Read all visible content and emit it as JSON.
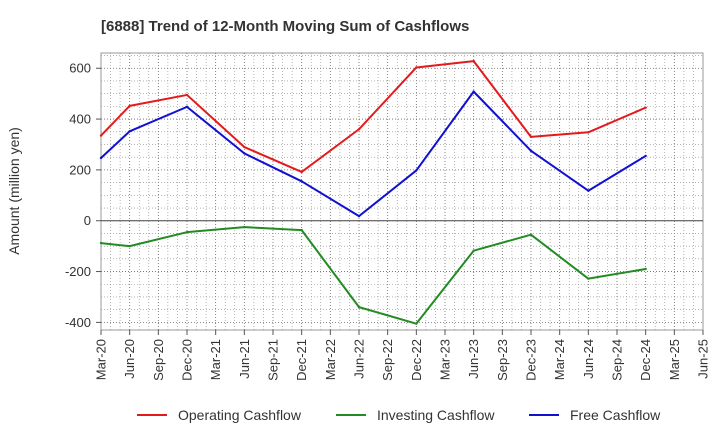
{
  "chart_data": {
    "type": "line",
    "title": "[6888]  Trend of 12-Month Moving Sum of Cashflows",
    "ylabel": "Amount (million yen)",
    "xlabel": "",
    "ylim": [
      -430,
      660
    ],
    "yticks": [
      600,
      400,
      200,
      0,
      -200,
      -400
    ],
    "ytick_labels": [
      "600",
      "400",
      "200",
      "0",
      "-200",
      "-400"
    ],
    "categories": [
      "Mar-20",
      "Jun-20",
      "Sep-20",
      "Dec-20",
      "Mar-21",
      "Jun-21",
      "Sep-21",
      "Dec-21",
      "Mar-22",
      "Jun-22",
      "Sep-22",
      "Dec-22",
      "Mar-23",
      "Jun-23",
      "Sep-23",
      "Dec-23",
      "Mar-24",
      "Jun-24",
      "Sep-24",
      "Dec-24",
      "Mar-25",
      "Jun-25"
    ],
    "grid": true,
    "legend_position": "bottom",
    "series": [
      {
        "name": "Operating Cashflow",
        "color": "#e31a1c",
        "points": [
          {
            "x": "Mar-20",
            "y": 335
          },
          {
            "x": "Jun-20",
            "y": 452
          },
          {
            "x": "Dec-20",
            "y": 495
          },
          {
            "x": "Jun-21",
            "y": 290
          },
          {
            "x": "Dec-21",
            "y": 192
          },
          {
            "x": "Jun-22",
            "y": 360
          },
          {
            "x": "Dec-22",
            "y": 603
          },
          {
            "x": "Jun-23",
            "y": 628
          },
          {
            "x": "Dec-23",
            "y": 330
          },
          {
            "x": "Jun-24",
            "y": 348
          },
          {
            "x": "Dec-24",
            "y": 445
          }
        ]
      },
      {
        "name": "Investing Cashflow",
        "color": "#238b23",
        "points": [
          {
            "x": "Mar-20",
            "y": -88
          },
          {
            "x": "Jun-20",
            "y": -100
          },
          {
            "x": "Dec-20",
            "y": -45
          },
          {
            "x": "Jun-21",
            "y": -25
          },
          {
            "x": "Dec-21",
            "y": -37
          },
          {
            "x": "Jun-22",
            "y": -340
          },
          {
            "x": "Dec-22",
            "y": -405
          },
          {
            "x": "Jun-23",
            "y": -118
          },
          {
            "x": "Dec-23",
            "y": -55
          },
          {
            "x": "Jun-24",
            "y": -228
          },
          {
            "x": "Dec-24",
            "y": -190
          }
        ]
      },
      {
        "name": "Free Cashflow",
        "color": "#1010d0",
        "points": [
          {
            "x": "Mar-20",
            "y": 247
          },
          {
            "x": "Jun-20",
            "y": 352
          },
          {
            "x": "Dec-20",
            "y": 448
          },
          {
            "x": "Jun-21",
            "y": 265
          },
          {
            "x": "Dec-21",
            "y": 155
          },
          {
            "x": "Jun-22",
            "y": 18
          },
          {
            "x": "Dec-22",
            "y": 198
          },
          {
            "x": "Jun-23",
            "y": 508
          },
          {
            "x": "Dec-23",
            "y": 275
          },
          {
            "x": "Jun-24",
            "y": 118
          },
          {
            "x": "Dec-24",
            "y": 255
          }
        ]
      }
    ]
  }
}
